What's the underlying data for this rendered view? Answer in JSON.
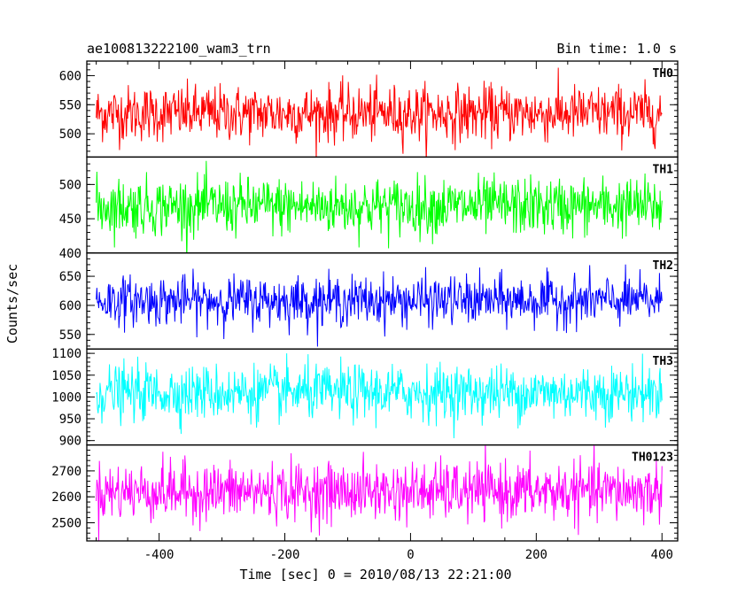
{
  "chart_data": {
    "type": "line",
    "title": "ae100813222100_wam3_trn",
    "bin_time": "Bin time: 1.0 s",
    "xlabel": "Time [sec] 0 = 2010/08/13 22:21:00",
    "ylabel": "Counts/sec",
    "xlim": [
      -515,
      425
    ],
    "x_ticks": [
      -400,
      -200,
      0,
      200,
      400
    ],
    "x_range_data": [
      -500,
      400
    ],
    "grid": false,
    "panels": [
      {
        "name": "TH0",
        "color": "#ff0000",
        "ylim": [
          460,
          625
        ],
        "ticks": [
          500,
          550,
          600
        ],
        "mean": 535,
        "amplitude": 32
      },
      {
        "name": "TH1",
        "color": "#00ff00",
        "ylim": [
          400,
          540
        ],
        "ticks": [
          400,
          450,
          500
        ],
        "mean": 468,
        "amplitude": 28
      },
      {
        "name": "TH2",
        "color": "#0000ff",
        "ylim": [
          525,
          690
        ],
        "ticks": [
          550,
          600,
          650
        ],
        "mean": 608,
        "amplitude": 28
      },
      {
        "name": "TH3",
        "color": "#00ffff",
        "ylim": [
          890,
          1110
        ],
        "ticks": [
          900,
          950,
          1000,
          1050,
          1100
        ],
        "mean": 1010,
        "amplitude": 42
      },
      {
        "name": "TH0123",
        "color": "#ff00ff",
        "ylim": [
          2430,
          2800
        ],
        "ticks": [
          2500,
          2600,
          2700
        ],
        "mean": 2620,
        "amplitude": 75
      }
    ]
  }
}
